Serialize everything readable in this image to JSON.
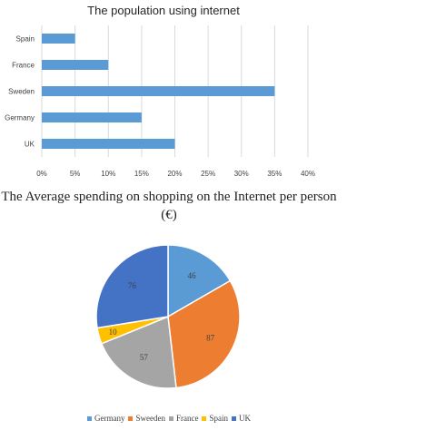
{
  "chart_data": [
    {
      "type": "bar",
      "orientation": "horizontal",
      "title": "The population using internet",
      "categories": [
        "Spain",
        "France",
        "Sweden",
        "Germany",
        "UK"
      ],
      "values": [
        5,
        10,
        35,
        15,
        20
      ],
      "xlim": [
        0,
        40
      ],
      "xticks": [
        "0%",
        "5%",
        "10%",
        "15%",
        "20%",
        "25%",
        "30%",
        "35%",
        "40%"
      ],
      "grid": true,
      "legend": "none",
      "color": "#5b9bd5"
    },
    {
      "type": "pie",
      "title": "The Average spending on shopping on the Internet per person (€)",
      "categories": [
        "Germany",
        "Sweeden",
        "France",
        "Spain",
        "UK"
      ],
      "values": [
        46,
        87,
        57,
        10,
        76
      ],
      "colors": [
        "#5b9bd5",
        "#ed7d31",
        "#a5a5a5",
        "#ffc000",
        "#4472c4"
      ],
      "legend": "bottom"
    }
  ]
}
